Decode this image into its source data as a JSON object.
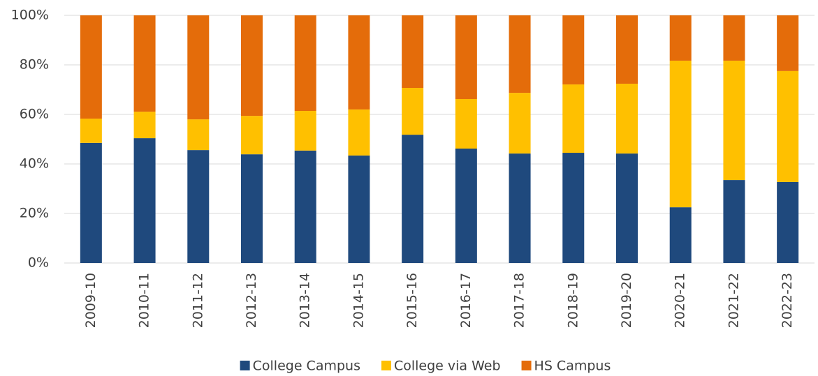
{
  "chart_data": {
    "type": "stacked_bar",
    "categories": [
      "2009-10",
      "2010-11",
      "2011-12",
      "2012-13",
      "2013-14",
      "2014-15",
      "2015-16",
      "2016-17",
      "2017-18",
      "2018-19",
      "2019-20",
      "2020-21",
      "2021-22",
      "2022-23"
    ],
    "series": [
      {
        "name": "College Campus",
        "color": "#1f497d",
        "values": [
          48.5,
          50.4,
          45.6,
          43.9,
          45.4,
          43.4,
          51.8,
          46.2,
          44.2,
          44.5,
          44.2,
          22.5,
          33.5,
          32.7
        ]
      },
      {
        "name": "College via Web",
        "color": "#ffc000",
        "values": [
          9.8,
          10.7,
          12.4,
          15.5,
          16.0,
          18.6,
          18.9,
          20.0,
          24.5,
          27.6,
          28.2,
          59.2,
          48.2,
          44.8
        ]
      },
      {
        "name": "HS Campus",
        "color": "#e46c0a",
        "values": [
          41.7,
          38.9,
          42.0,
          40.6,
          38.6,
          38.0,
          29.3,
          33.8,
          31.3,
          27.9,
          27.6,
          18.3,
          18.3,
          22.5
        ]
      }
    ],
    "ylim": [
      0,
      100
    ],
    "yticks": [
      {
        "value": 0,
        "label": "0%"
      },
      {
        "value": 20,
        "label": "20%"
      },
      {
        "value": 40,
        "label": "40%"
      },
      {
        "value": 60,
        "label": "60%"
      },
      {
        "value": 80,
        "label": "80%"
      },
      {
        "value": 100,
        "label": "100%"
      }
    ],
    "grid": true,
    "legend": "bottom"
  }
}
